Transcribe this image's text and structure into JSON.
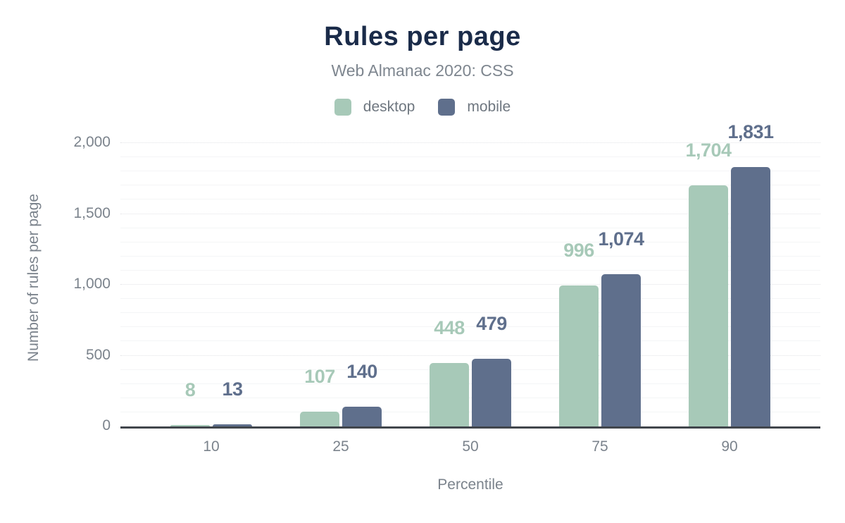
{
  "chart_data": {
    "type": "bar",
    "title": "Rules per page",
    "subtitle": "Web Almanac 2020: CSS",
    "xlabel": "Percentile",
    "ylabel": "Number of rules per page",
    "categories": [
      "10",
      "25",
      "50",
      "75",
      "90"
    ],
    "series": [
      {
        "name": "desktop",
        "color": "#a7c9b8",
        "values": [
          8,
          107,
          448,
          996,
          1704
        ],
        "value_labels": [
          "8",
          "107",
          "448",
          "996",
          "1,704"
        ]
      },
      {
        "name": "mobile",
        "color": "#5f6f8c",
        "values": [
          13,
          140,
          479,
          1074,
          1831
        ],
        "value_labels": [
          "13",
          "140",
          "479",
          "1,074",
          "1,831"
        ]
      }
    ],
    "ylim": [
      0,
      2000
    ],
    "yticks": [
      0,
      500,
      1000,
      1500,
      2000
    ],
    "ytick_labels": [
      "0",
      "500",
      "1,000",
      "1,500",
      "2,000"
    ],
    "minor_grid_step": 100,
    "grid": true,
    "legend_position": "top"
  },
  "colors": {
    "background": "#ffffff",
    "title": "#1a2b49",
    "subtitle": "#7e868f",
    "tick_label": "#7b838c",
    "legend_label": "#6f7780",
    "axis_line": "#41464c",
    "major_grid": "#e2e3e6",
    "minor_grid": "#f4f5f6",
    "desktop": "#a7c9b8",
    "mobile": "#5f6f8c"
  }
}
